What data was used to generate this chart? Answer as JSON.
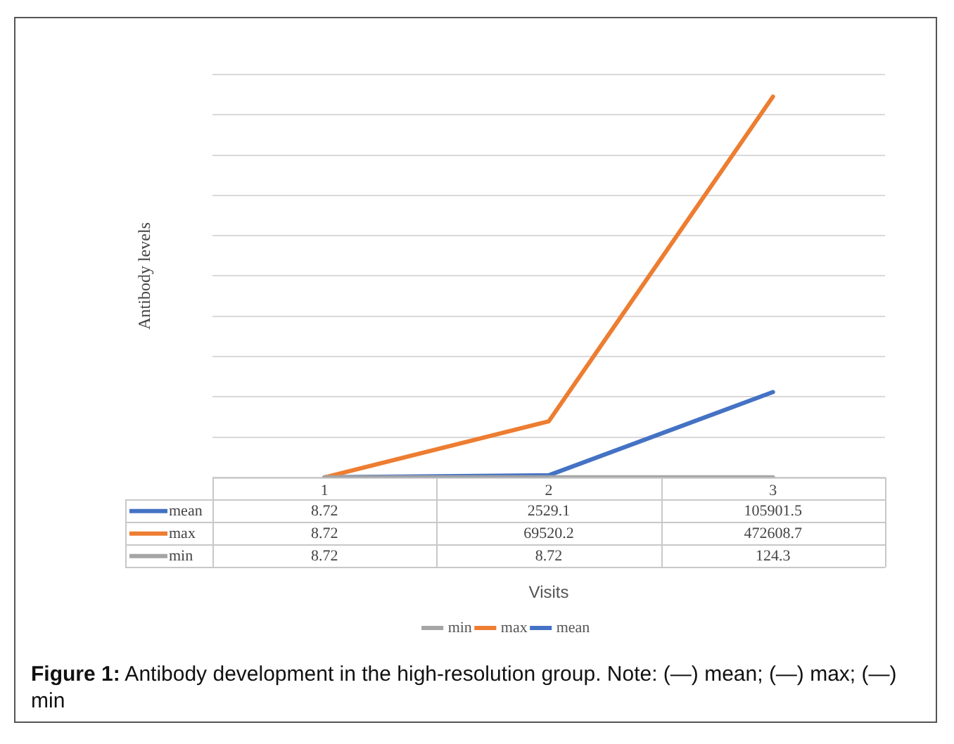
{
  "chart_data": {
    "type": "line",
    "xlabel": "Visits",
    "ylabel": "Antibody levels",
    "categories": [
      "1",
      "2",
      "3"
    ],
    "series": [
      {
        "name": "mean",
        "color": "#4472c4",
        "values": [
          8.72,
          2529.1,
          105901.5
        ]
      },
      {
        "name": "max",
        "color": "#ed7d31",
        "values": [
          8.72,
          69520.2,
          472608.7
        ]
      },
      {
        "name": "min",
        "color": "#a5a5a5",
        "values": [
          8.72,
          8.72,
          124.3
        ]
      }
    ],
    "ylim": [
      0,
      500000
    ],
    "yticks": [
      {
        "value": 0,
        "label": null
      },
      {
        "value": 50000,
        "label": null
      },
      {
        "value": 100000,
        "label": null
      },
      {
        "value": 150000,
        "label": null
      },
      {
        "value": 200000,
        "label": null
      },
      {
        "value": 250000,
        "label": null
      },
      {
        "value": 300000,
        "label": null
      },
      {
        "value": 350000,
        "label": null
      },
      {
        "value": 400000,
        "label": null
      },
      {
        "value": 450000,
        "label": null
      },
      {
        "value": 500000,
        "label": null
      }
    ],
    "tick_labels": "x",
    "grid": "y",
    "legend": "bottom",
    "marker": "none",
    "line_style": "solid",
    "data_labels": true,
    "annotations": [
      "Figure 1: Antibody development in the high-resolution group. Note: (—) mean; (—) max; (—) min"
    ]
  }
}
